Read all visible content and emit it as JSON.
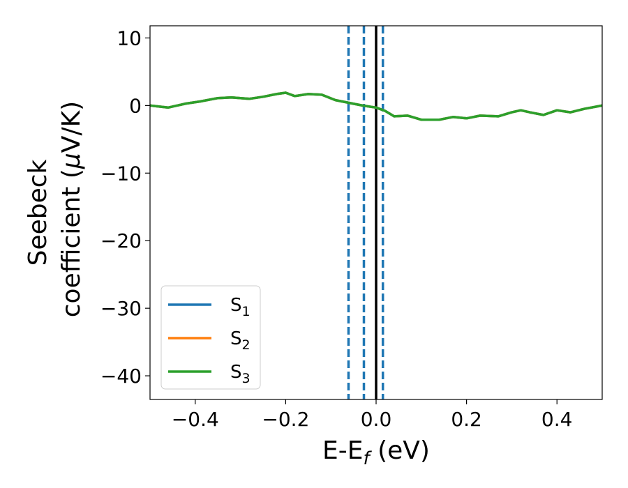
{
  "chart_data": {
    "type": "line",
    "xlabel": {
      "main": "E-E",
      "sub": "f",
      "tail": " (eV)"
    },
    "ylabel": {
      "line1": "Seebeck",
      "line2_text": "coefficient  (",
      "line2_mu": "μ",
      "line2_tail": "V/K)"
    },
    "xlim": [
      -0.5,
      0.5
    ],
    "ylim": [
      -43.5,
      11.8
    ],
    "xticks": [
      -0.4,
      -0.2,
      0.0,
      0.2,
      0.4
    ],
    "xtick_labels": [
      "−0.4",
      "−0.2",
      "0.0",
      "0.2",
      "0.4"
    ],
    "yticks": [
      10,
      0,
      -10,
      -20,
      -30,
      -40
    ],
    "ytick_labels": [
      "10",
      "0",
      "−10",
      "−20",
      "−30",
      "−40"
    ],
    "grid": false,
    "legend_position": "lower-left",
    "series": [
      {
        "name": "S",
        "sub": "1",
        "color": "#1f77b4",
        "x": [
          -0.5,
          -0.46,
          -0.42,
          -0.39,
          -0.35,
          -0.32,
          -0.28,
          -0.25,
          -0.22,
          -0.2,
          -0.18,
          -0.15,
          -0.12,
          -0.09,
          -0.06,
          -0.03,
          0.0,
          0.02,
          0.04,
          0.07,
          0.1,
          0.14,
          0.17,
          0.2,
          0.23,
          0.27,
          0.3,
          0.32,
          0.34,
          0.37,
          0.4,
          0.43,
          0.46,
          0.5
        ],
        "y": [
          0.0,
          -0.3,
          0.3,
          0.6,
          1.1,
          1.2,
          1.0,
          1.3,
          1.7,
          1.9,
          1.4,
          1.7,
          1.6,
          0.8,
          0.4,
          0.0,
          -0.3,
          -0.8,
          -1.6,
          -1.5,
          -2.1,
          -2.1,
          -1.7,
          -1.9,
          -1.5,
          -1.6,
          -1.0,
          -0.7,
          -1.0,
          -1.4,
          -0.7,
          -1.0,
          -0.5,
          0.0
        ]
      },
      {
        "name": "S",
        "sub": "2",
        "color": "#ff7f0e",
        "x": [
          -0.5,
          -0.46,
          -0.42,
          -0.39,
          -0.35,
          -0.32,
          -0.28,
          -0.25,
          -0.22,
          -0.2,
          -0.18,
          -0.15,
          -0.12,
          -0.09,
          -0.06,
          -0.03,
          0.0,
          0.02,
          0.04,
          0.07,
          0.1,
          0.14,
          0.17,
          0.2,
          0.23,
          0.27,
          0.3,
          0.32,
          0.34,
          0.37,
          0.4,
          0.43,
          0.46,
          0.5
        ],
        "y": [
          0.0,
          -0.3,
          0.3,
          0.6,
          1.1,
          1.2,
          1.0,
          1.3,
          1.7,
          1.9,
          1.4,
          1.7,
          1.6,
          0.8,
          0.4,
          0.0,
          -0.3,
          -0.8,
          -1.6,
          -1.5,
          -2.1,
          -2.1,
          -1.7,
          -1.9,
          -1.5,
          -1.6,
          -1.0,
          -0.7,
          -1.0,
          -1.4,
          -0.7,
          -1.0,
          -0.5,
          0.0
        ]
      },
      {
        "name": "S",
        "sub": "3",
        "color": "#2ca02c",
        "x": [
          -0.5,
          -0.46,
          -0.42,
          -0.39,
          -0.35,
          -0.32,
          -0.28,
          -0.25,
          -0.22,
          -0.2,
          -0.18,
          -0.15,
          -0.12,
          -0.09,
          -0.06,
          -0.03,
          0.0,
          0.02,
          0.04,
          0.07,
          0.1,
          0.14,
          0.17,
          0.2,
          0.23,
          0.27,
          0.3,
          0.32,
          0.34,
          0.37,
          0.4,
          0.43,
          0.46,
          0.5
        ],
        "y": [
          0.0,
          -0.3,
          0.3,
          0.6,
          1.1,
          1.2,
          1.0,
          1.3,
          1.7,
          1.9,
          1.4,
          1.7,
          1.6,
          0.8,
          0.4,
          0.0,
          -0.3,
          -0.8,
          -1.6,
          -1.5,
          -2.1,
          -2.1,
          -1.7,
          -1.9,
          -1.5,
          -1.6,
          -1.0,
          -0.7,
          -1.0,
          -1.4,
          -0.7,
          -1.0,
          -0.5,
          0.0
        ]
      }
    ],
    "vlines": [
      {
        "x": 0.0,
        "style": "solid",
        "color": "#000000"
      },
      {
        "x": -0.061,
        "style": "dashed",
        "color": "#1f77b4"
      },
      {
        "x": -0.027,
        "style": "dashed",
        "color": "#1f77b4"
      },
      {
        "x": 0.015,
        "style": "dashed",
        "color": "#1f77b4"
      }
    ]
  }
}
